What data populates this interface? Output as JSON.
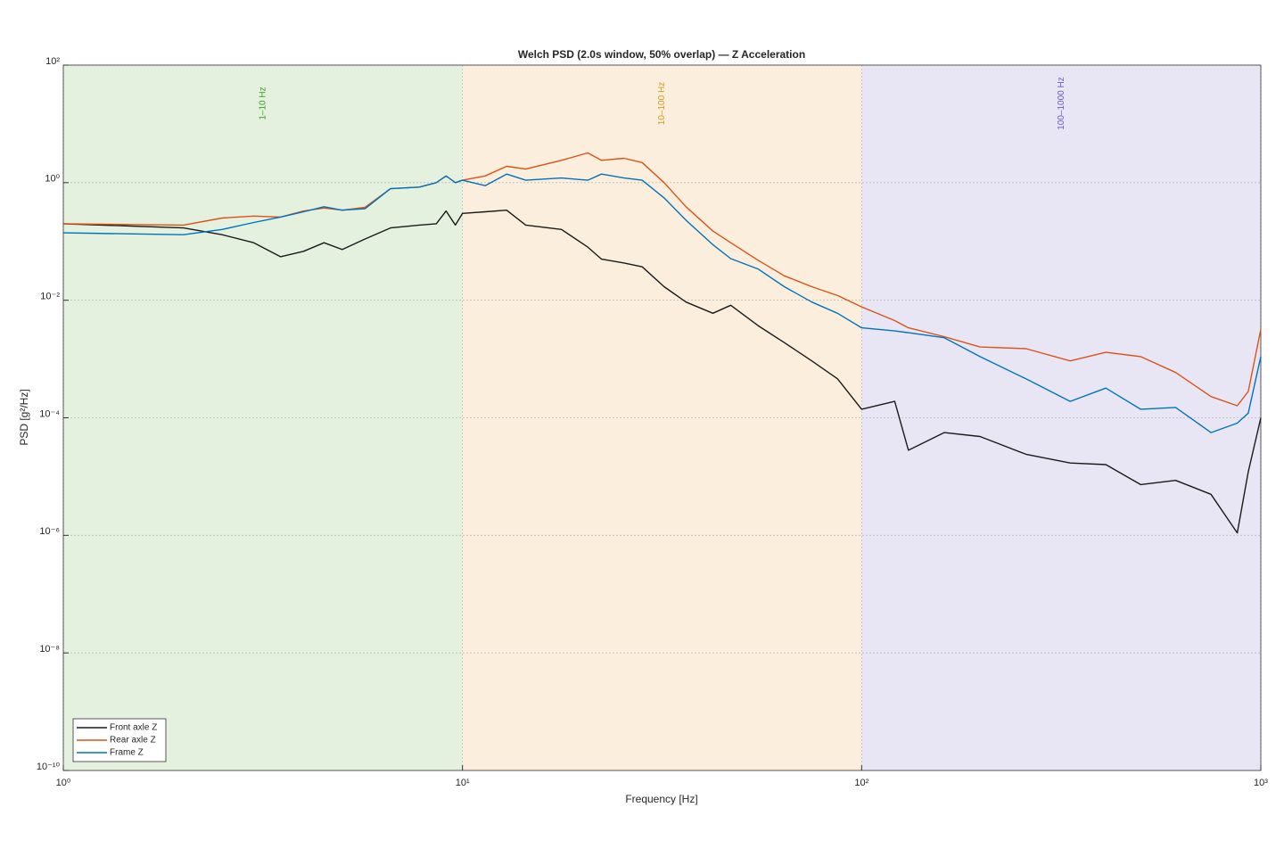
{
  "chart_data": {
    "type": "line",
    "title": "Welch PSD (2.0s window, 50% overlap) — Z Acceleration",
    "x_label": "Frequency [Hz]",
    "y_label": "PSD [g²/Hz]",
    "x_scale": "log",
    "y_scale": "log",
    "grid": true,
    "legend_position": "lower left",
    "xlim": [
      1,
      1000
    ],
    "xticks": [
      {
        "value": 1,
        "label": "10⁰"
      },
      {
        "value": 10,
        "label": "10¹"
      },
      {
        "value": 100,
        "label": "10²"
      },
      {
        "value": 1000,
        "label": "10³"
      }
    ],
    "ylim": [
      1e-10,
      100
    ],
    "yticks": [
      {
        "value": 1e-10,
        "label": "10⁻¹⁰"
      },
      {
        "value": 1e-08,
        "label": "10⁻⁸"
      },
      {
        "value": 1e-06,
        "label": "10⁻⁶"
      },
      {
        "value": 0.0001,
        "label": "10⁻⁴"
      },
      {
        "value": 0.01,
        "label": "10⁻²"
      },
      {
        "value": 1,
        "label": "10⁰"
      },
      {
        "value": 100,
        "label": "10²"
      }
    ],
    "bands": [
      {
        "label": "1–10 Hz",
        "range": [
          1,
          10
        ],
        "color": "#e5f1df",
        "text_color": "#3a9a2a"
      },
      {
        "label": "10–100 Hz",
        "range": [
          10,
          100
        ],
        "color": "#fbeedc",
        "text_color": "#d39a1c"
      },
      {
        "label": "100–1000 Hz",
        "range": [
          100,
          1000
        ],
        "color": "#e8e6f5",
        "text_color": "#6a58c8"
      }
    ],
    "x": [
      1,
      2,
      2.5,
      3,
      3.5,
      4,
      4.5,
      5,
      5.7,
      6.6,
      7.8,
      8.6,
      9.1,
      9.6,
      10,
      11.4,
      12.9,
      14.4,
      17.7,
      20.6,
      22.3,
      25.4,
      28.2,
      32,
      36.3,
      42.4,
      47,
      55,
      64,
      75,
      87,
      100,
      121,
      131,
      161,
      198,
      258,
      333,
      409,
      500,
      612,
      750,
      873,
      930,
      1000
    ],
    "series": [
      {
        "name": "Front axle Z",
        "color": "#1a1a1a",
        "values": [
          0.2,
          0.17,
          0.13,
          0.095,
          0.055,
          0.068,
          0.095,
          0.073,
          0.11,
          0.17,
          0.19,
          0.2,
          0.33,
          0.19,
          0.3,
          0.32,
          0.34,
          0.19,
          0.16,
          0.08,
          0.05,
          0.043,
          0.037,
          0.017,
          0.0093,
          0.006,
          0.0082,
          0.0037,
          0.0019,
          0.00093,
          0.00046,
          0.00014,
          0.00019,
          2.8e-05,
          5.6e-05,
          4.8e-05,
          2.4e-05,
          1.7e-05,
          1.6e-05,
          7.3e-06,
          8.6e-06,
          5e-06,
          1.1e-06,
          1.2e-05,
          0.0001
        ]
      },
      {
        "name": "Rear axle Z",
        "color": "#d95319",
        "values": [
          0.2,
          0.19,
          0.25,
          0.27,
          0.26,
          0.33,
          0.37,
          0.34,
          0.38,
          0.79,
          0.84,
          1.0,
          1.3,
          1.0,
          1.1,
          1.3,
          1.9,
          1.7,
          2.4,
          3.2,
          2.4,
          2.6,
          2.2,
          1.0,
          0.39,
          0.15,
          0.095,
          0.048,
          0.026,
          0.017,
          0.012,
          0.0077,
          0.0045,
          0.0034,
          0.0024,
          0.0016,
          0.0015,
          0.00093,
          0.0013,
          0.0011,
          0.00059,
          0.00023,
          0.00016,
          0.00028,
          0.0032
        ]
      },
      {
        "name": "Frame Z",
        "color": "#0072bd",
        "values": [
          0.14,
          0.13,
          0.16,
          0.21,
          0.26,
          0.32,
          0.39,
          0.34,
          0.36,
          0.79,
          0.84,
          1.0,
          1.3,
          1.0,
          1.1,
          0.89,
          1.4,
          1.1,
          1.2,
          1.1,
          1.4,
          1.2,
          1.1,
          0.55,
          0.23,
          0.088,
          0.051,
          0.034,
          0.017,
          0.0093,
          0.006,
          0.0034,
          0.003,
          0.0028,
          0.0023,
          0.0011,
          0.00046,
          0.00019,
          0.00032,
          0.00014,
          0.00015,
          5.6e-05,
          8.1e-05,
          0.00012,
          0.0011
        ]
      }
    ]
  }
}
